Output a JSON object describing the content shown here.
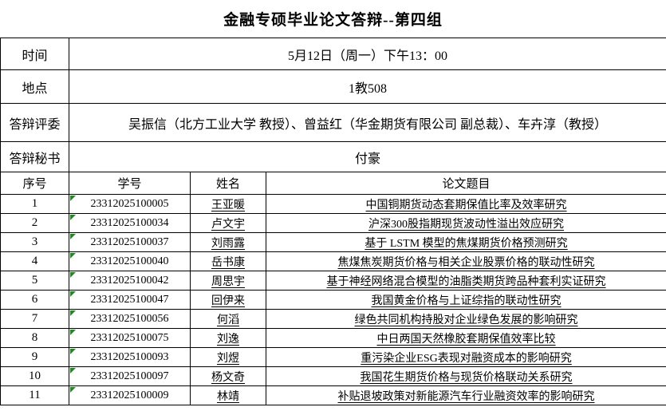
{
  "title": "金融专硕毕业论文答辩--第四组",
  "info_rows": [
    {
      "label": "时间",
      "value": "5月12日（周一）下午13：00"
    },
    {
      "label": "地点",
      "value": "1教508"
    },
    {
      "label": "答辩评委",
      "value": "吴振信（北方工业大学 教授）、曾益红（华金期货有限公司 副总裁）、车卉淳（教授）"
    },
    {
      "label": "答辩秘书",
      "value": "付豪"
    }
  ],
  "table": {
    "headers": [
      "序号",
      "学号",
      "姓名",
      "论文题目"
    ],
    "rows": [
      {
        "no": "1",
        "student_id": "23312025100005",
        "name": "王亚暖",
        "thesis_title": "中国铜期货动态套期保值比率及效率研究"
      },
      {
        "no": "2",
        "student_id": "23312025100034",
        "name": "卢文宇",
        "thesis_title": "沪深300股指期现货波动性溢出效应研究"
      },
      {
        "no": "3",
        "student_id": "23312025100037",
        "name": "刘雨露",
        "thesis_title": "基于 LSTM 模型的焦煤期货价格预测研究"
      },
      {
        "no": "4",
        "student_id": "23312025100040",
        "name": "岳书康",
        "thesis_title": "焦煤焦炭期货价格与相关企业股票价格的联动性研究"
      },
      {
        "no": "5",
        "student_id": "23312025100042",
        "name": "周思宇",
        "thesis_title": "基于神经网络混合模型的油脂类期货跨品种套利实证研究"
      },
      {
        "no": "6",
        "student_id": "23312025100047",
        "name": "回伊来",
        "thesis_title": "我国黄金价格与上证综指的联动性研究"
      },
      {
        "no": "7",
        "student_id": "23312025100056",
        "name": "何滔",
        "thesis_title": "绿色共同机构持股对企业绿色发展的影响研究"
      },
      {
        "no": "8",
        "student_id": "23312025100075",
        "name": "刘逸",
        "thesis_title": "中日两国天然橡胶套期保值效率比较"
      },
      {
        "no": "9",
        "student_id": "23312025100093",
        "name": "刘煜",
        "thesis_title": "重污染企业ESG表现对融资成本的影响研究"
      },
      {
        "no": "10",
        "student_id": "23312025100097",
        "name": "杨文奇",
        "thesis_title": "我国花生期货价格与现货价格联动关系研究"
      },
      {
        "no": "11",
        "student_id": "23312025100009",
        "name": "林靖",
        "thesis_title": "补贴退坡政策对新能源汽车行业融资效率的影响研究"
      }
    ]
  },
  "colors": {
    "background": "#ffffff",
    "text": "#000000",
    "border": "#000000",
    "indicator_green": "#1f8a1f"
  }
}
